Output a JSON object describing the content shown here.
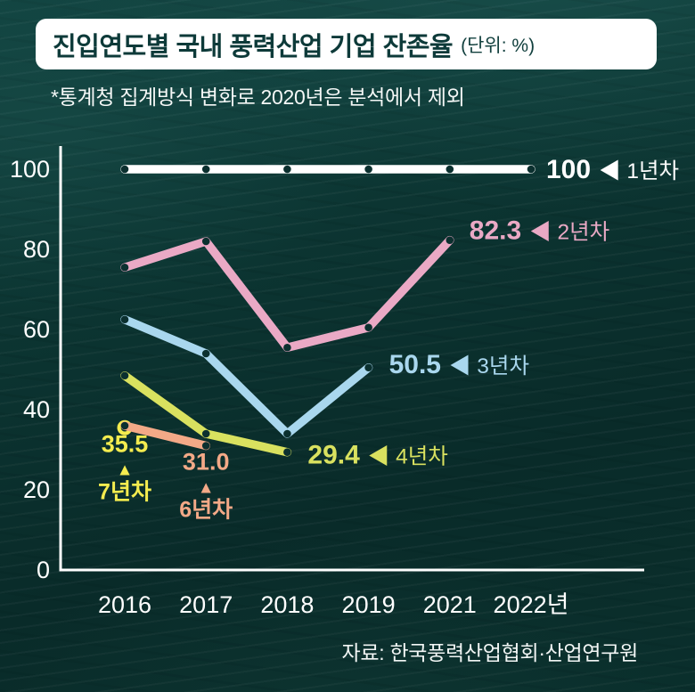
{
  "header": {
    "title": "진입연도별 국내 풍력산업 기업 잔존율",
    "unit": "(단위: %)",
    "note": "*통계청 집계방식 변화로 2020년은 분석에서 제외"
  },
  "source": "자료: 한국풍력산업협회·산업연구원",
  "colors": {
    "background": "#0b3130",
    "axis": "#ffffff",
    "tick_text": "#ffffff",
    "marker_dot": "#0b302f"
  },
  "chart_data": {
    "type": "line",
    "title": "진입연도별 국내 풍력산업 기업 잔존율",
    "unit": "%",
    "x_categories": [
      "2016",
      "2017",
      "2018",
      "2019",
      "2021",
      "2022년"
    ],
    "y_ticks": [
      0,
      20,
      40,
      60,
      80,
      100
    ],
    "ylim": [
      0,
      100
    ],
    "grid": false,
    "legend_position": "inline-annotations",
    "note": "2020 excluded from analysis",
    "series": [
      {
        "name": "1년차",
        "color": "#ffffff",
        "values": [
          100,
          100,
          100,
          100,
          100,
          100
        ],
        "annotation": {
          "style": "right",
          "value": "100",
          "arrow": "◀",
          "label": "1년차"
        }
      },
      {
        "name": "2년차",
        "color": "#eaa9c5",
        "values": [
          75.5,
          82,
          55.5,
          60.5,
          82.3,
          null
        ],
        "annotation": {
          "style": "right",
          "value": "82.3",
          "arrow": "◀",
          "label": "2년차"
        }
      },
      {
        "name": "3년차",
        "color": "#a9d7ee",
        "values": [
          62.5,
          54,
          34,
          50.5,
          null,
          null
        ],
        "annotation": {
          "style": "right",
          "value": "50.5",
          "arrow": "◀",
          "label": "3년차"
        }
      },
      {
        "name": "4년차",
        "color": "#d9e15f",
        "values": [
          48.5,
          34,
          29.4,
          null,
          null,
          null
        ],
        "annotation": {
          "style": "right",
          "value": "29.4",
          "arrow": "◀",
          "label": "4년차"
        }
      },
      {
        "name": "7년차",
        "color": "#f4ec4f",
        "values": [
          35.5,
          null,
          null,
          null,
          null,
          null
        ],
        "annotation": {
          "style": "below",
          "value": "35.5",
          "arrow": "▲",
          "label": "7년차"
        }
      },
      {
        "name": "6년차",
        "color": "#f3a987",
        "values": [
          36,
          31.0,
          null,
          null,
          null,
          null
        ],
        "annotation": {
          "style": "below",
          "value": "31.0",
          "arrow": "▲",
          "label": "6년차"
        }
      }
    ]
  }
}
